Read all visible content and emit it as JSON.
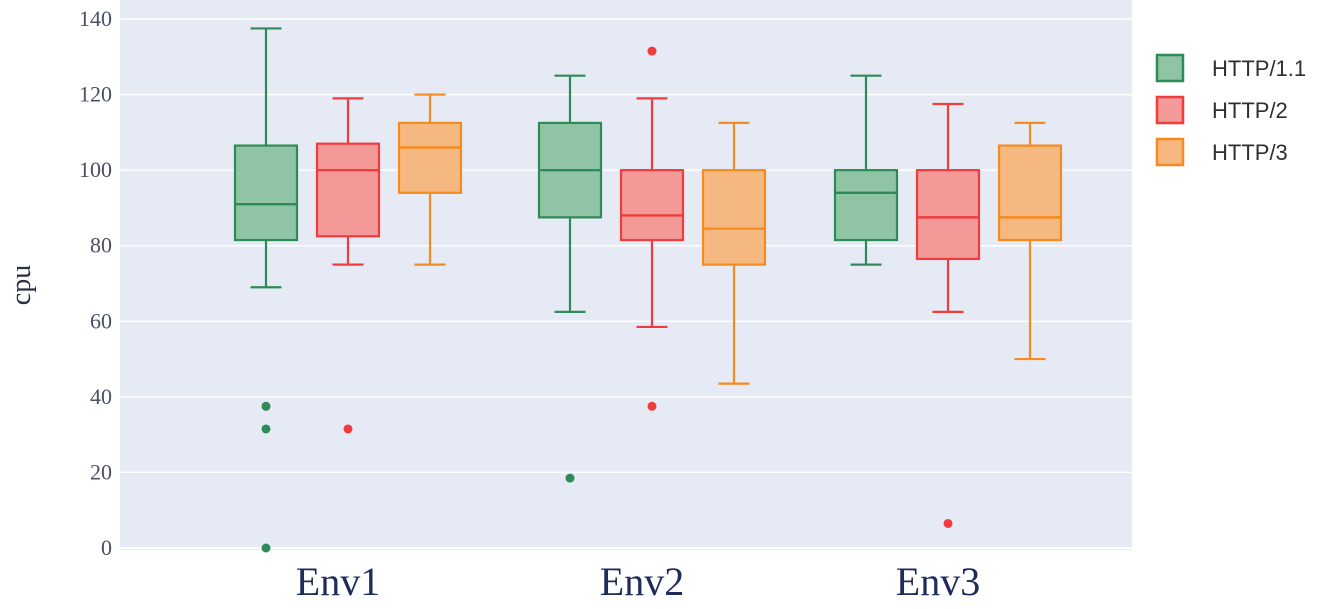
{
  "chart_data": {
    "type": "box",
    "title": "",
    "xlabel": "",
    "ylabel": "cpu",
    "ylim": [
      0,
      140
    ],
    "yticks": [
      0,
      20,
      40,
      60,
      80,
      100,
      120,
      140
    ],
    "grid": true,
    "legend_position": "top-right",
    "categories": [
      "Env1",
      "Env2",
      "Env3"
    ],
    "series": [
      {
        "name": "HTTP/1.1",
        "line_color": "#2e8b57",
        "fill_color": "#8fc4a4",
        "boxes": [
          {
            "category": "Env1",
            "lower_whisker": 69,
            "q1": 81.5,
            "median": 91,
            "q3": 106.5,
            "upper_whisker": 137.5,
            "outliers": [
              37.5,
              31.5,
              0
            ]
          },
          {
            "category": "Env2",
            "lower_whisker": 62.5,
            "q1": 87.5,
            "median": 100,
            "q3": 112.5,
            "upper_whisker": 125,
            "outliers": [
              18.5
            ]
          },
          {
            "category": "Env3",
            "lower_whisker": 75,
            "q1": 81.5,
            "median": 94,
            "q3": 100,
            "upper_whisker": 125,
            "outliers": []
          }
        ]
      },
      {
        "name": "HTTP/2",
        "line_color": "#f03c3c",
        "fill_color": "#f39a99",
        "boxes": [
          {
            "category": "Env1",
            "lower_whisker": 75,
            "q1": 82.5,
            "median": 100,
            "q3": 107,
            "upper_whisker": 119,
            "outliers": [
              31.5
            ]
          },
          {
            "category": "Env2",
            "lower_whisker": 58.5,
            "q1": 81.5,
            "median": 88,
            "q3": 100,
            "upper_whisker": 119,
            "outliers": [
              131.5,
              37.5
            ]
          },
          {
            "category": "Env3",
            "lower_whisker": 62.5,
            "q1": 76.5,
            "median": 87.5,
            "q3": 100,
            "upper_whisker": 117.5,
            "outliers": [
              6.5
            ]
          }
        ]
      },
      {
        "name": "HTTP/3",
        "line_color": "#f58a1f",
        "fill_color": "#f5b880",
        "boxes": [
          {
            "category": "Env1",
            "lower_whisker": 75,
            "q1": 94,
            "median": 106,
            "q3": 112.5,
            "upper_whisker": 120,
            "outliers": []
          },
          {
            "category": "Env2",
            "lower_whisker": 43.5,
            "q1": 75,
            "median": 84.5,
            "q3": 100,
            "upper_whisker": 112.5,
            "outliers": []
          },
          {
            "category": "Env3",
            "lower_whisker": 50,
            "q1": 81.5,
            "median": 87.5,
            "q3": 106.5,
            "upper_whisker": 112.5,
            "outliers": []
          }
        ]
      }
    ]
  }
}
